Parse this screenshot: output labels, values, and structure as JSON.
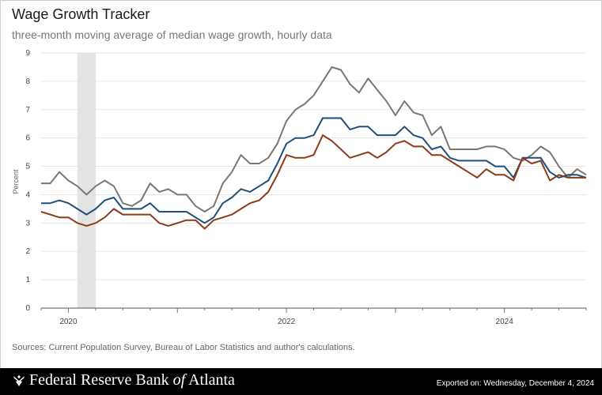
{
  "header": {
    "title": "Wage Growth Tracker",
    "subtitle": "three-month moving average of median wage growth, hourly data"
  },
  "source_note": "Sources: Current Population Survey, Bureau of Labor Statistics and author's calculations.",
  "footer": {
    "logo_pre": "Federal Reserve Bank ",
    "logo_of": "of",
    "logo_post": " Atlanta",
    "exported": "Exported on: Wednesday, December 4, 2024"
  },
  "colors": {
    "gray_series": "#7b7670",
    "blue_series": "#1f4e79",
    "brown_series": "#8b3a1a",
    "recession_band": "#e3e3e3",
    "footer_bg": "#000000"
  },
  "chart_data": {
    "type": "line",
    "ylabel": "Percent",
    "ylim": [
      0,
      9
    ],
    "y_ticks": [
      "0",
      "1",
      "2",
      "3",
      "4",
      "5",
      "6",
      "7",
      "8",
      "9"
    ],
    "x_ticks": [
      "2020",
      "2022",
      "2024"
    ],
    "x_range": [
      "2019-10",
      "2024-10"
    ],
    "grid": true,
    "recession_shading": {
      "start": "2020-02",
      "end": "2020-04"
    },
    "x": [
      "2019-10",
      "2019-11",
      "2019-12",
      "2020-01",
      "2020-02",
      "2020-03",
      "2020-04",
      "2020-05",
      "2020-06",
      "2020-07",
      "2020-08",
      "2020-09",
      "2020-10",
      "2020-11",
      "2020-12",
      "2021-01",
      "2021-02",
      "2021-03",
      "2021-04",
      "2021-05",
      "2021-06",
      "2021-07",
      "2021-08",
      "2021-09",
      "2021-10",
      "2021-11",
      "2021-12",
      "2022-01",
      "2022-02",
      "2022-03",
      "2022-04",
      "2022-05",
      "2022-06",
      "2022-07",
      "2022-08",
      "2022-09",
      "2022-10",
      "2022-11",
      "2022-12",
      "2023-01",
      "2023-02",
      "2023-03",
      "2023-04",
      "2023-05",
      "2023-06",
      "2023-07",
      "2023-08",
      "2023-09",
      "2023-10",
      "2023-11",
      "2023-12",
      "2024-01",
      "2024-02",
      "2024-03",
      "2024-04",
      "2024-05",
      "2024-06",
      "2024-07",
      "2024-08",
      "2024-09",
      "2024-10"
    ],
    "series": [
      {
        "values": [
          4.4,
          4.4,
          4.8,
          4.5,
          4.3,
          4.0,
          4.3,
          4.5,
          4.3,
          3.7,
          3.6,
          3.8,
          4.4,
          4.1,
          4.2,
          4.0,
          4.0,
          3.6,
          3.4,
          3.6,
          4.4,
          4.8,
          5.4,
          5.1,
          5.1,
          5.3,
          5.8,
          6.6,
          7.0,
          7.2,
          7.5,
          8.0,
          8.5,
          8.4,
          7.9,
          7.6,
          8.1,
          7.7,
          7.3,
          6.8,
          7.3,
          6.9,
          6.8,
          6.1,
          6.4,
          5.6,
          5.6,
          5.6,
          5.6,
          5.7,
          5.7,
          5.6,
          5.3,
          5.2,
          5.4,
          5.7,
          5.5,
          5.0,
          4.6,
          4.9,
          4.7
        ]
      },
      {
        "values": [
          3.7,
          3.7,
          3.8,
          3.7,
          3.5,
          3.3,
          3.5,
          3.8,
          3.9,
          3.5,
          3.5,
          3.5,
          3.7,
          3.4,
          3.4,
          3.4,
          3.4,
          3.2,
          3.0,
          3.2,
          3.7,
          3.9,
          4.2,
          4.1,
          4.3,
          4.5,
          5.1,
          5.8,
          6.0,
          6.0,
          6.1,
          6.7,
          6.7,
          6.7,
          6.3,
          6.4,
          6.4,
          6.1,
          6.1,
          6.1,
          6.4,
          6.1,
          6.0,
          5.6,
          5.7,
          5.3,
          5.2,
          5.2,
          5.2,
          5.2,
          5.0,
          5.0,
          4.6,
          5.3,
          5.3,
          5.3,
          4.8,
          4.6,
          4.7,
          4.7,
          4.6
        ]
      },
      {
        "values": [
          3.4,
          3.3,
          3.2,
          3.2,
          3.0,
          2.9,
          3.0,
          3.2,
          3.5,
          3.3,
          3.3,
          3.3,
          3.3,
          3.0,
          2.9,
          3.0,
          3.1,
          3.1,
          2.8,
          3.1,
          3.2,
          3.3,
          3.5,
          3.7,
          3.8,
          4.1,
          4.7,
          5.4,
          5.3,
          5.3,
          5.4,
          6.1,
          5.9,
          5.6,
          5.3,
          5.4,
          5.5,
          5.3,
          5.5,
          5.8,
          5.9,
          5.7,
          5.7,
          5.4,
          5.4,
          5.2,
          5.0,
          4.8,
          4.6,
          4.9,
          4.7,
          4.7,
          4.5,
          5.3,
          5.1,
          5.2,
          4.5,
          4.7,
          4.6,
          4.6,
          4.6
        ]
      }
    ]
  }
}
